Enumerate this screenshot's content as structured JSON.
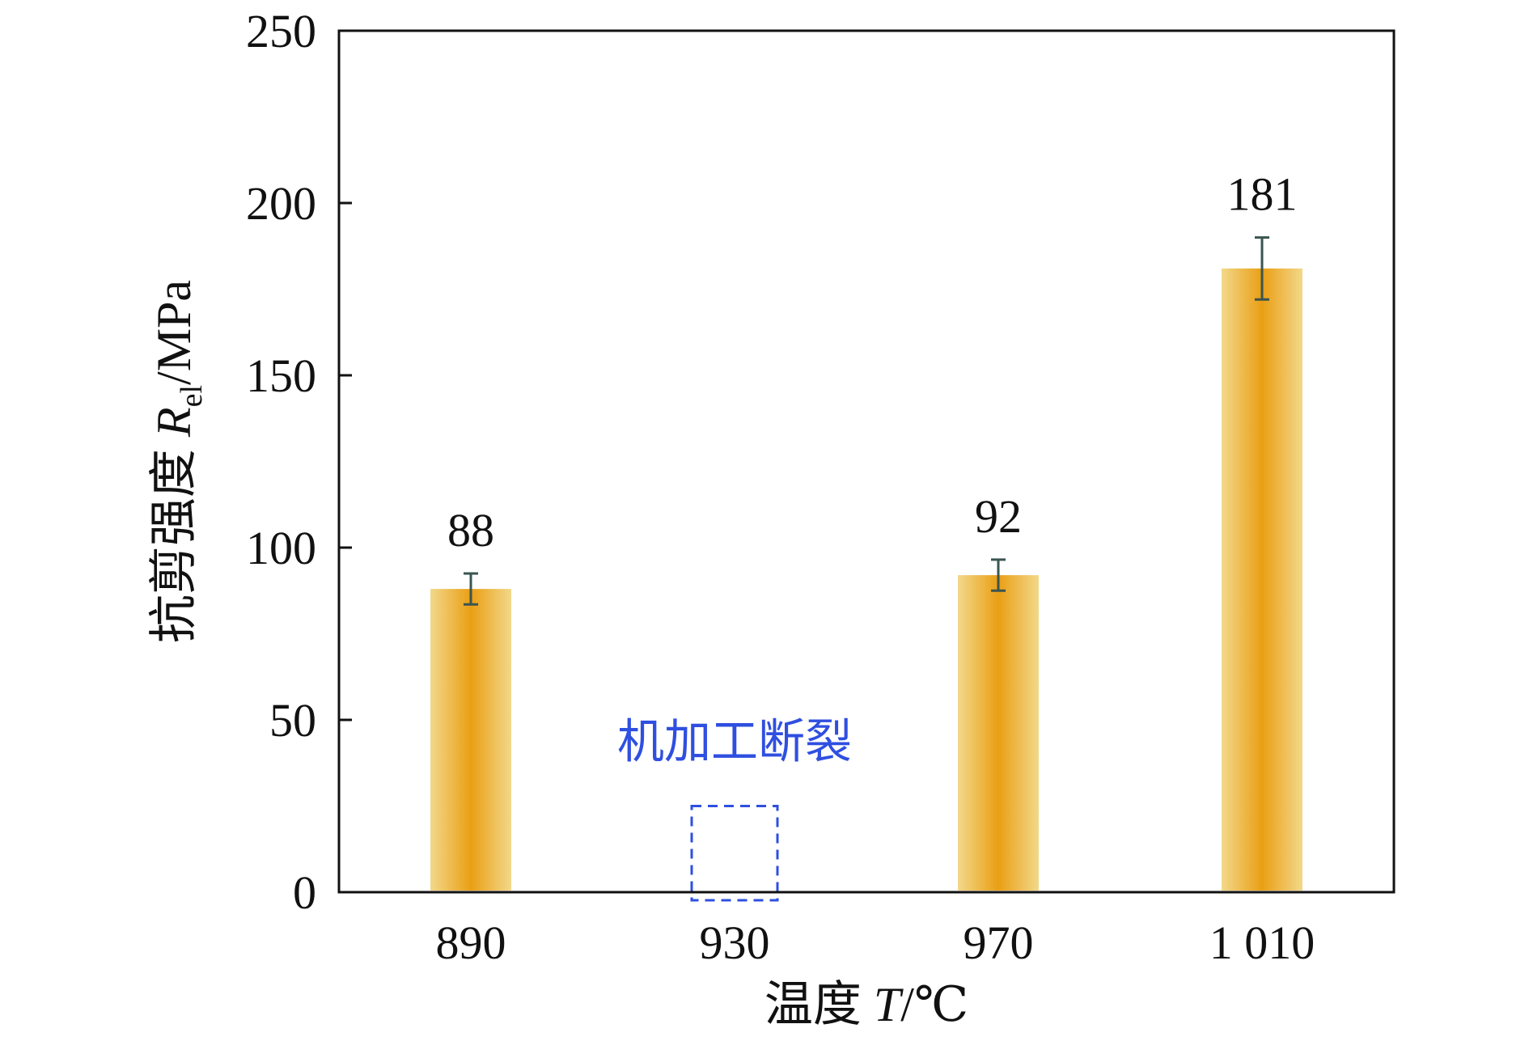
{
  "chart_data": {
    "type": "bar",
    "categories": [
      "890",
      "930",
      "970",
      "1 010"
    ],
    "values": [
      88,
      null,
      92,
      181
    ],
    "error": [
      4.5,
      null,
      4.5,
      9
    ],
    "data_labels": [
      "88",
      "",
      "92",
      "181"
    ],
    "ylim": [
      0,
      250
    ],
    "yticks": [
      0,
      50,
      100,
      150,
      200,
      250
    ],
    "ytick_labels": [
      "0",
      "50",
      "100",
      "150",
      "200",
      "250"
    ],
    "xlabel": {
      "prefix": "温度 ",
      "symbol": "T",
      "suffix": "/℃"
    },
    "ylabel": {
      "prefix": "抗剪强度 ",
      "symbol": "R",
      "subscript": "el",
      "suffix": "/MPa"
    },
    "annotation": {
      "text": "机加工断裂",
      "category": "930",
      "box_value": 25
    },
    "grid": false,
    "legend": "none",
    "colors": {
      "bar_edge": "#F2D88A",
      "bar_center": "#EA9F14",
      "error_bar": "#3A5550",
      "annotation": "#2F4FE0",
      "axis": "#111111"
    }
  }
}
